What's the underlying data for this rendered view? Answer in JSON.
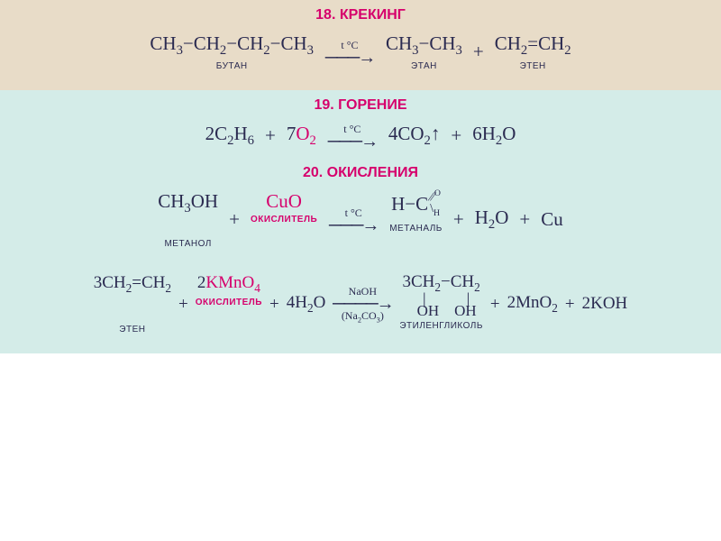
{
  "colors": {
    "title": "#d6006c",
    "accent": "#d6006c",
    "text": "#2a2a50",
    "bg1": "#e8dcc8",
    "bg2": "#d4ece8",
    "bg3": "#d8eeea"
  },
  "section1": {
    "title": "18. КРЕКИНГ",
    "arrow_top": "t °C",
    "reactant": {
      "formula_html": "CH<sub>3</sub>−CH<sub>2</sub>−CH<sub>2</sub>−CH<sub>3</sub>",
      "label": "БУТАН"
    },
    "prod1": {
      "formula_html": "CH<sub>3</sub>−CH<sub>3</sub>",
      "label": "ЭТАН"
    },
    "prod2": {
      "formula_html": "CH<sub>2</sub>=CH<sub>2</sub>",
      "label": "ЭТЕН"
    },
    "plus": "+"
  },
  "section2": {
    "title": "19. ГОРЕНИЕ",
    "arrow_top": "t °C",
    "r1_html": "2C<sub>2</sub>H<sub>6</sub>",
    "r2_pre": "7",
    "r2_accent_html": "O<sub>2</sub>",
    "p1_html": "4CO<sub>2</sub>↑",
    "p2_html": "6H<sub>2</sub>O",
    "plus": "+"
  },
  "section3": {
    "title": "20. ОКИСЛЕНИЯ",
    "eq1": {
      "arrow_top": "t °C",
      "r1_html": "CH<sub>3</sub>OH",
      "r1_label": "МЕТАНОЛ",
      "r2_accent": "CuO",
      "r2_label": "ОКИСЛИТЕЛЬ",
      "p1_label": "МЕТАНАЛЬ",
      "p2_html": "H<sub>2</sub>O",
      "p3_html": "Cu",
      "plus": "+",
      "hch_top": "O",
      "hch_mid": "H−C",
      "hch_bot": "H",
      "dslash": "⁄⁄",
      "bslash": "\\"
    },
    "eq2": {
      "arrow_top": "NaOH",
      "arrow_bot_html": "(Na<sub>2</sub>CO<sub>3</sub>)",
      "r1_pre": "3",
      "r1_html": "CH<sub>2</sub>=CH<sub>2</sub>",
      "r1_label": "ЭТЕН",
      "r2_pre": "2",
      "r2_accent_html": "KMnO<sub>4</sub>",
      "r2_label": "ОКИСЛИТЕЛЬ",
      "r3_html": "4H<sub>2</sub>O",
      "p1_pre": "3",
      "p1_top_html": "CH<sub>2</sub>−CH<sub>2</sub>",
      "p1_pipes": "|        |",
      "p1_bot": "OH    OH",
      "p1_label": "ЭТИЛЕНГЛИКОЛЬ",
      "p2_html": "2MnO<sub>2</sub>",
      "p3_html": "2KOH",
      "plus": "+"
    }
  }
}
